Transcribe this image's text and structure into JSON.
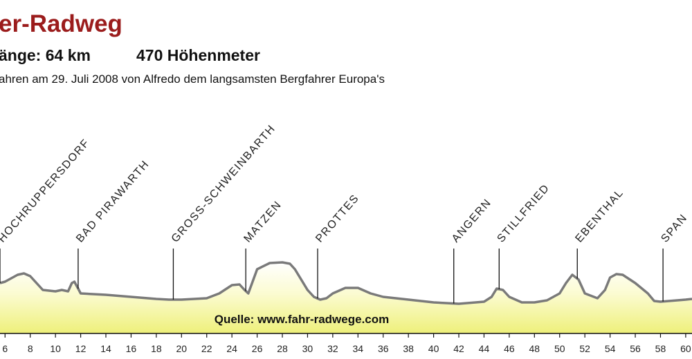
{
  "chart_data": {
    "type": "area",
    "title": "er-Radweg",
    "length": "änge: 64 km",
    "climb": "470 Höhenmeter",
    "subtitle": "ahren am 29. Juli 2008 von Alfredo dem langsamsten Bergfahrer Europa's",
    "source": "Quelle: www.fahr-radwege.com",
    "line_color": "#7a7a7a",
    "fill_color": "#eef07a",
    "x": [
      5.6,
      6,
      7,
      7.5,
      8,
      8.5,
      9,
      10,
      10.5,
      11,
      11.3,
      11.5,
      11.8,
      12,
      14,
      16,
      18,
      19,
      20,
      22,
      23,
      24,
      24.6,
      25,
      25.3,
      25.6,
      26,
      27,
      28,
      28.6,
      29,
      29.5,
      30,
      30.5,
      31,
      31.5,
      32,
      33,
      34,
      35,
      36,
      38,
      40,
      42,
      44,
      44.6,
      45,
      45.5,
      46,
      47,
      48,
      49,
      50,
      50.5,
      51,
      51.5,
      52,
      53,
      53.6,
      54,
      54.5,
      55,
      56,
      57,
      57.5,
      58,
      60,
      60.5
    ],
    "values": [
      220,
      222,
      232,
      234,
      230,
      220,
      210,
      208,
      210,
      208,
      220,
      222,
      212,
      205,
      203,
      200,
      197,
      196,
      196,
      198,
      205,
      217,
      218,
      210,
      205,
      220,
      240,
      249,
      250,
      248,
      240,
      225,
      210,
      200,
      196,
      198,
      205,
      213,
      213,
      205,
      200,
      196,
      192,
      190,
      193,
      200,
      212,
      210,
      200,
      192,
      192,
      195,
      205,
      220,
      232,
      225,
      205,
      198,
      210,
      228,
      233,
      232,
      220,
      205,
      194,
      193,
      196,
      197
    ],
    "xlim": [
      5.6,
      60.5
    ],
    "ylim": [
      150,
      300
    ],
    "xticks": [
      6,
      8,
      10,
      12,
      14,
      16,
      18,
      20,
      22,
      24,
      26,
      28,
      30,
      32,
      34,
      36,
      38,
      40,
      42,
      44,
      46,
      48,
      50,
      52,
      54,
      56,
      58,
      60
    ],
    "places": [
      {
        "x": 5.6,
        "label": "HOCHRUPPERSDORF"
      },
      {
        "x": 11.8,
        "label": "BAD PIRAWARTH"
      },
      {
        "x": 19.35,
        "label": "GROSS-SCHWEINBARTH"
      },
      {
        "x": 25.1,
        "label": "MATZEN"
      },
      {
        "x": 30.8,
        "label": "PROTTES"
      },
      {
        "x": 41.6,
        "label": "ANGERN"
      },
      {
        "x": 45.2,
        "label": "STILLFRIED"
      },
      {
        "x": 51.4,
        "label": "EBENTHAL"
      },
      {
        "x": 58.2,
        "label": "SPAN"
      }
    ]
  }
}
